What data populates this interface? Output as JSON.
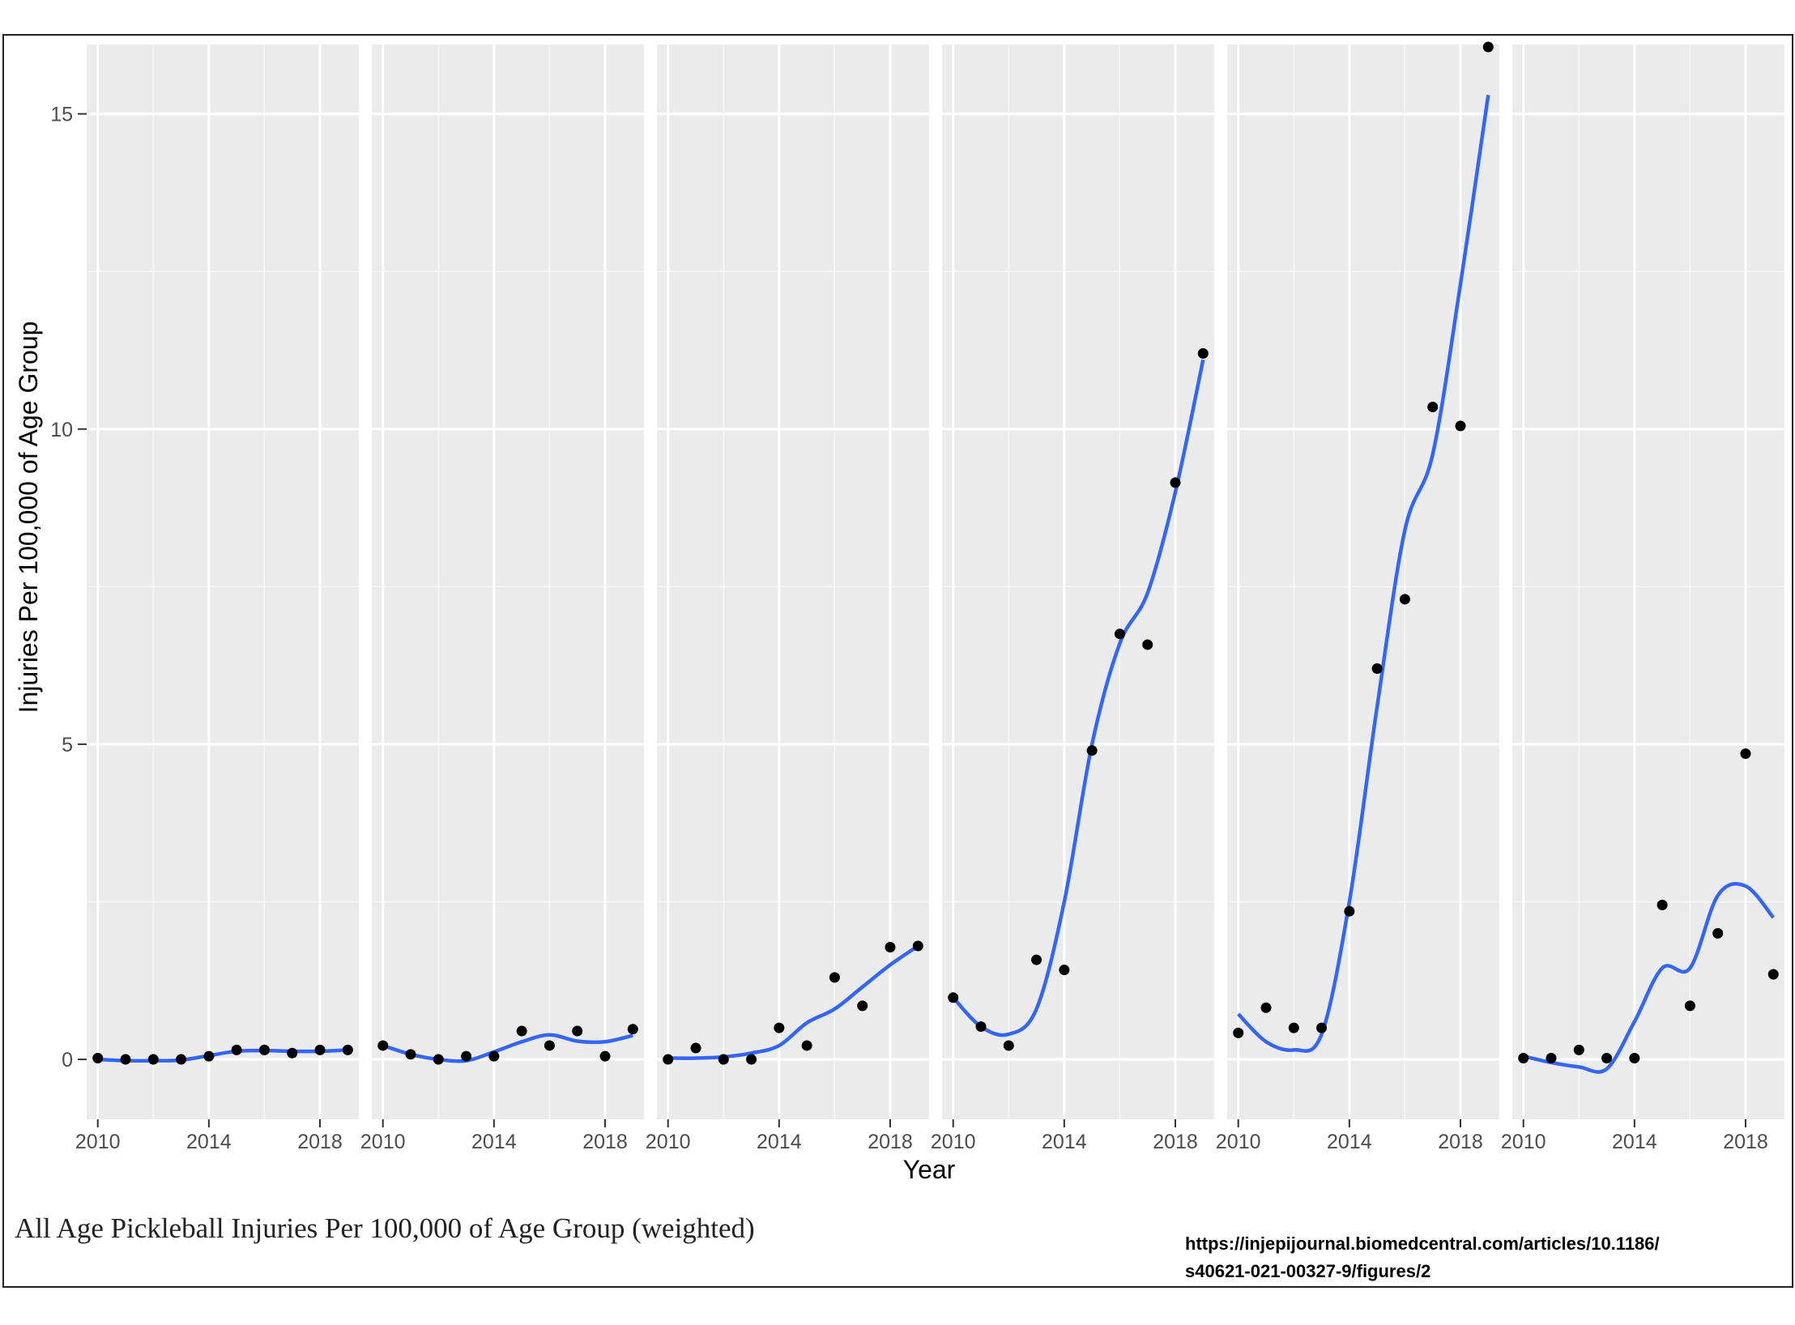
{
  "chart_data": {
    "type": "scatter",
    "x_ticks": [
      2010,
      2014,
      2018
    ],
    "y_ticks": [
      0,
      5,
      10,
      15
    ],
    "x_range": [
      2009.6,
      2019.4
    ],
    "y_range": [
      -0.95,
      16.1
    ],
    "xlabel": "Year",
    "ylabel": "Injuries Per 100,000 of Age Group",
    "grid": true,
    "panels": [
      {
        "x": [
          2010,
          2011,
          2012,
          2013,
          2014,
          2015,
          2016,
          2017,
          2018,
          2019
        ],
        "values": [
          0.02,
          0.0,
          0.0,
          0.0,
          0.05,
          0.15,
          0.15,
          0.1,
          0.15,
          0.15
        ],
        "smooth": [
          0.0,
          -0.02,
          -0.02,
          -0.01,
          0.06,
          0.13,
          0.14,
          0.13,
          0.13,
          0.15
        ]
      },
      {
        "x": [
          2010,
          2011,
          2012,
          2013,
          2014,
          2015,
          2016,
          2017,
          2018,
          2019
        ],
        "values": [
          0.22,
          0.08,
          0.0,
          0.05,
          0.05,
          0.45,
          0.22,
          0.45,
          0.05,
          0.48
        ],
        "smooth": [
          0.22,
          0.08,
          0.0,
          -0.02,
          0.12,
          0.28,
          0.39,
          0.29,
          0.28,
          0.38
        ]
      },
      {
        "x": [
          2010,
          2011,
          2012,
          2013,
          2014,
          2015,
          2016,
          2017,
          2018,
          2019
        ],
        "values": [
          0.0,
          0.18,
          0.0,
          0.0,
          0.5,
          0.22,
          1.3,
          0.85,
          1.78,
          1.8
        ],
        "smooth": [
          0.02,
          0.02,
          0.04,
          0.1,
          0.22,
          0.58,
          0.8,
          1.15,
          1.5,
          1.8
        ]
      },
      {
        "x": [
          2010,
          2011,
          2012,
          2013,
          2014,
          2015,
          2016,
          2017,
          2018,
          2019
        ],
        "values": [
          0.98,
          0.52,
          0.22,
          1.58,
          1.42,
          4.9,
          6.75,
          6.58,
          9.15,
          11.2
        ],
        "smooth": [
          0.98,
          0.52,
          0.4,
          0.8,
          2.5,
          5.0,
          6.6,
          7.4,
          9.0,
          11.1
        ]
      },
      {
        "x": [
          2010,
          2011,
          2012,
          2013,
          2014,
          2015,
          2016,
          2017,
          2018,
          2019
        ],
        "values": [
          0.42,
          0.82,
          0.5,
          0.5,
          2.35,
          6.2,
          7.3,
          10.35,
          10.05,
          16.1
        ],
        "smooth": [
          0.72,
          0.28,
          0.15,
          0.4,
          2.5,
          5.6,
          8.4,
          9.6,
          12.3,
          15.3
        ]
      },
      {
        "x": [
          2010,
          2011,
          2012,
          2013,
          2014,
          2015,
          2016,
          2017,
          2018,
          2019
        ],
        "values": [
          0.02,
          0.02,
          0.15,
          0.02,
          0.02,
          2.45,
          0.85,
          2.0,
          4.85,
          1.35
        ],
        "smooth": [
          0.05,
          -0.05,
          -0.12,
          -0.15,
          0.6,
          1.45,
          1.45,
          2.6,
          2.75,
          2.25
        ]
      }
    ]
  },
  "caption": "All Age Pickleball Injuries Per 100,000 of Age Group (weighted)",
  "source_line1": "https://injepijournal.biomedcentral.com/articles/10.1186/",
  "source_line2": "s40621-021-00327-9/figures/2",
  "colors": {
    "panel_bg": "#ebebeb",
    "grid_major": "#ffffff",
    "smooth_line": "#3366ff",
    "point": "#000000"
  }
}
